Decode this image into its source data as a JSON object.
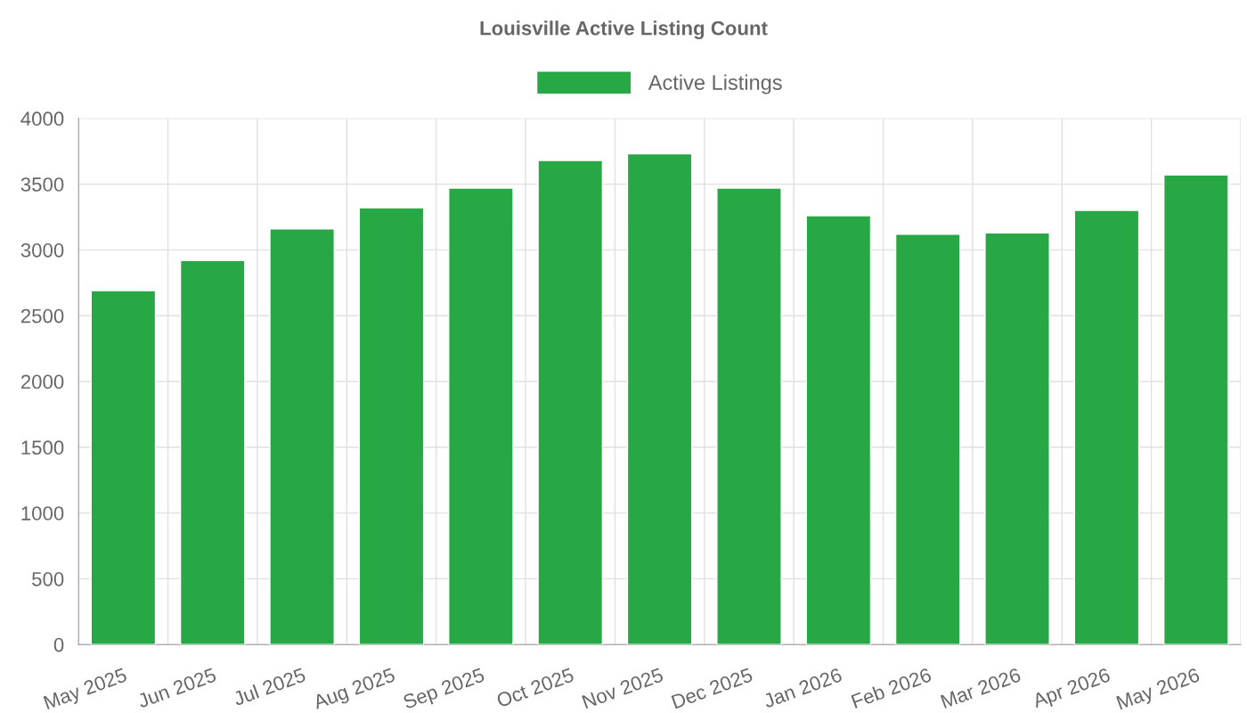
{
  "chart_data": {
    "type": "bar",
    "title": "Louisville Active Listing Count",
    "categories": [
      "May 2025",
      "Jun 2025",
      "Jul 2025",
      "Aug 2025",
      "Sep 2025",
      "Oct 2025",
      "Nov 2025",
      "Dec 2025",
      "Jan 2026",
      "Feb 2026",
      "Mar 2026",
      "Apr 2026",
      "May 2026"
    ],
    "series": [
      {
        "name": "Active Listings",
        "color": "#28a745",
        "values": [
          2690,
          2920,
          3160,
          3320,
          3470,
          3680,
          3730,
          3470,
          3260,
          3120,
          3130,
          3300,
          3570
        ]
      }
    ],
    "ylim": [
      0,
      4000
    ],
    "yticks": [
      0,
      500,
      1000,
      1500,
      2000,
      2500,
      3000,
      3500,
      4000
    ],
    "grid": true,
    "legend": "top"
  }
}
